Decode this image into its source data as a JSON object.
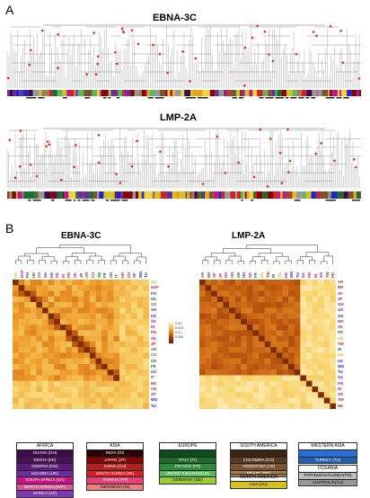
{
  "panel_a_label": "A",
  "panel_b_label": "B",
  "tree1": {
    "title": "EBNA-3C"
  },
  "tree2": {
    "title": "LMP-2A"
  },
  "heatmap1": {
    "title": "EBNA-3C",
    "labels": [
      "UU",
      "NAF",
      "PO",
      "UK",
      "SO",
      "SH",
      "KE",
      "SK",
      "IN",
      "PN",
      "SK",
      "JP",
      "AR",
      "CO",
      "GE",
      "FR",
      "UG",
      "IT",
      "HK",
      "CH",
      "AF",
      "WG",
      "TU"
    ],
    "colors": [
      "#d4c21d",
      "#c71585",
      "#6a2d9e",
      "#1b6e2a",
      "#8b5e3c",
      "#6a2d9e",
      "#6a2d9e",
      "#c71585",
      "#c71585",
      "#d62020",
      "#c71585",
      "#d62020",
      "#7a5230",
      "#7a5230",
      "#1b6e2a",
      "#1b6e2a",
      "#6a2d9e",
      "#1b6e2a",
      "#d62020",
      "#d62020",
      "#6a2d9e",
      "#2222cc",
      "#2222cc"
    ]
  },
  "heatmap2": {
    "title": "LMP-2A",
    "labels": [
      "AR",
      "BR",
      "AF",
      "JP",
      "GH",
      "UG",
      "GE",
      "NG",
      "SK",
      "FR",
      "UU",
      "TW",
      "IR",
      "UU",
      "KE",
      "WG",
      "TU",
      "SA",
      "PN",
      "IN",
      "SO",
      "TW",
      "HK"
    ],
    "colors": [
      "#7a5230",
      "#7a5230",
      "#6a2d9e",
      "#d62020",
      "#6a2d9e",
      "#6a2d9e",
      "#1b6e2a",
      "#6a2d9e",
      "#c71585",
      "#1b6e2a",
      "#d4c21d",
      "#d62020",
      "#1b6e2a",
      "#d4c21d",
      "#6a2d9e",
      "#2222cc",
      "#2222cc",
      "#6a2d9e",
      "#c71585",
      "#c71585",
      "#6a2d9e",
      "#d62020",
      "#d62020"
    ]
  },
  "scale": {
    "ticks": [
      "0.02",
      "0.015",
      "0.01",
      "0.005"
    ]
  },
  "legend": {
    "africa": {
      "header": "AFRICA",
      "items": [
        "GHANA (GH)",
        "KENYA (KE)",
        "NIGERIA (NG)",
        "UGANDA (UG)",
        "SOUTH AFRICA (SA)",
        "NORTH AFRICA (NAF)",
        "AFRICA (AF)"
      ],
      "colors": [
        "#3d0a4a",
        "#4b0f5c",
        "#5e1a7a",
        "#6a2d9e",
        "#c71585",
        "#d9559a",
        "#7d3ab0"
      ]
    },
    "asia": {
      "header": "ASIA",
      "items": [
        "INDIA (IN)",
        "JAPAN (JP)",
        "CHINA (CH)",
        "SOUTH KOREA (SK)",
        "TAIWAN (TW)",
        "INDONESIA (IN)"
      ],
      "colors": [
        "#2a0000",
        "#8b0000",
        "#b22222",
        "#d62020",
        "#e8417a",
        "#f08080"
      ]
    },
    "europe": {
      "header": "EUROPE",
      "items": [
        "",
        "ITALY (IT)",
        "FRANCE (FR)",
        "UNITED KINGDOM(UK)",
        "GERMANY (GE)"
      ],
      "colors": [
        "#0f4d1f",
        "#1b6e2a",
        "#2e8b3e",
        "#5cb85c",
        "#9acd32"
      ]
    },
    "south_america": {
      "header": "SOUTH AMERICA",
      "items": [
        "",
        "COLOMBIA (CO)",
        "ARGENTINA (AR)",
        "BRAZIL (BR)"
      ],
      "colors": [
        "#3b2414",
        "#5c3a1e",
        "#7a5230",
        "#a67c52"
      ]
    },
    "north_america": {
      "header": "NORTH AMERICA",
      "items": [
        "USA (UU)"
      ],
      "colors": [
        "#d4c21d"
      ]
    },
    "western_asia": {
      "header": "WESTERN ASIA",
      "items": [
        "",
        "TURKEY (TU)"
      ],
      "colors": [
        "#2a6fd6",
        "#1f5fb8"
      ]
    },
    "oceania": {
      "header": "OCEANIA",
      "items": [
        "PAPANUEVAGUINEA(PN)",
        "AUSTRALIA(AU)"
      ],
      "colors": [
        "#bdbdbd",
        "#999999"
      ]
    }
  }
}
